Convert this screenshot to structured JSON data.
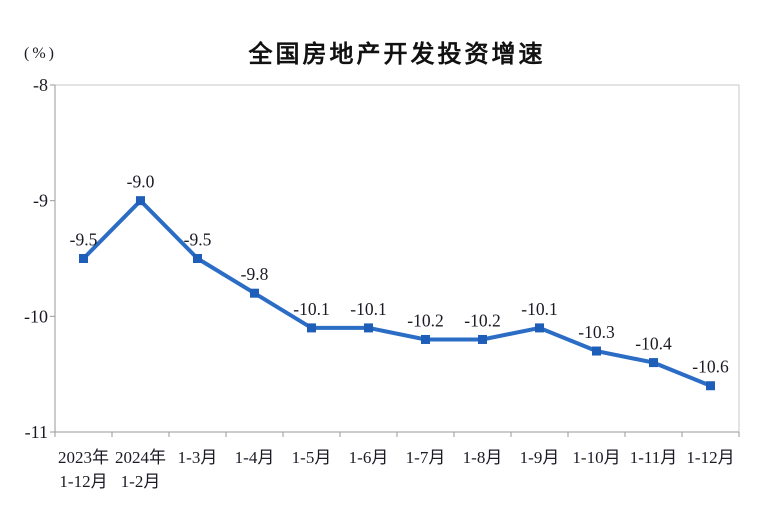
{
  "chart_data": {
    "type": "line",
    "title": "全国房地产开发投资增速",
    "unit": "(%)",
    "categories": [
      [
        "2023年",
        "1-12月"
      ],
      [
        "2024年",
        "1-2月"
      ],
      [
        "1-3月"
      ],
      [
        "1-4月"
      ],
      [
        "1-5月"
      ],
      [
        "1-6月"
      ],
      [
        "1-7月"
      ],
      [
        "1-8月"
      ],
      [
        "1-9月"
      ],
      [
        "1-10月"
      ],
      [
        "1-11月"
      ],
      [
        "1-12月"
      ]
    ],
    "values": [
      -9.5,
      -9.0,
      -9.5,
      -9.8,
      -10.1,
      -10.1,
      -10.2,
      -10.2,
      -10.1,
      -10.3,
      -10.4,
      -10.6
    ],
    "data_labels": [
      "-9.5",
      "-9.0",
      "-9.5",
      "-9.8",
      "-10.1",
      "-10.1",
      "-10.2",
      "-10.2",
      "-10.1",
      "-10.3",
      "-10.4",
      "-10.6"
    ],
    "y_ticks": [
      -8,
      -9,
      -10,
      -11
    ],
    "y_tick_labels": [
      "-8",
      "-9",
      "-10",
      "-11"
    ],
    "ylim": [
      -11,
      -8
    ],
    "xlabel": "",
    "ylabel": "(%)",
    "grid": false,
    "legend": "none",
    "line_color": "#2b6cc4",
    "marker_color": "#1e5eb8",
    "label_color": "#1a1a24",
    "axis_color": "#9a9a9a",
    "border_color": "#c9c9c9"
  }
}
